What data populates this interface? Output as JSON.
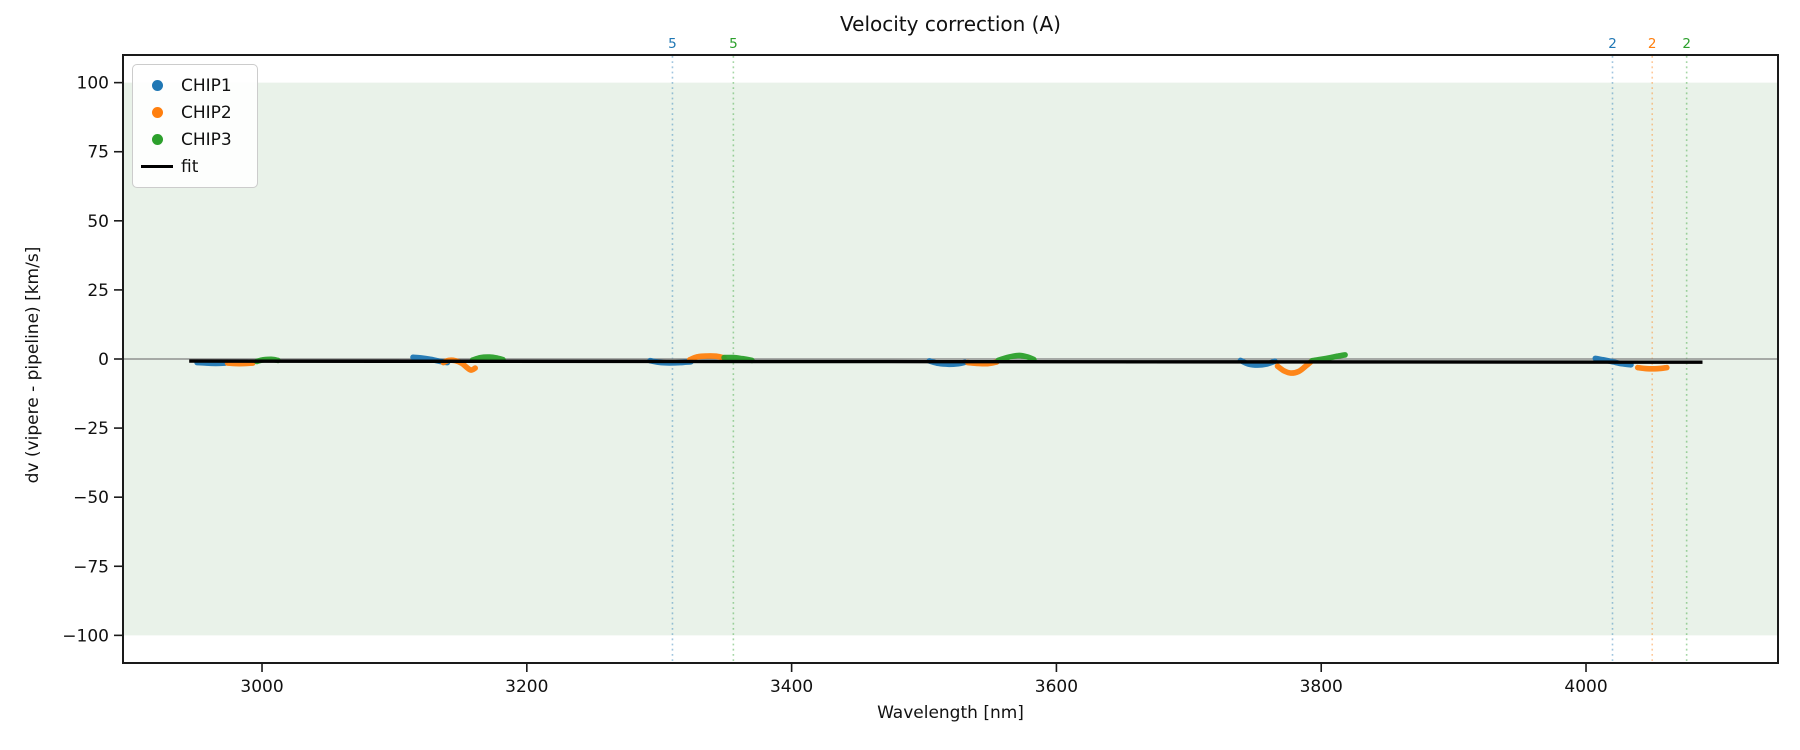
{
  "title": "Velocity correction (A)",
  "legend": {
    "entries": [
      {
        "label": "CHIP1",
        "marker": "dot",
        "color": "#1f77b4"
      },
      {
        "label": "CHIP2",
        "marker": "dot",
        "color": "#ff7f0e"
      },
      {
        "label": "CHIP3",
        "marker": "dot",
        "color": "#2ca02c"
      },
      {
        "label": "fit",
        "marker": "line",
        "color": "#000000"
      }
    ]
  },
  "chart_data": {
    "type": "scatter",
    "title": "Velocity correction (A)",
    "xlabel": "Wavelength [nm]",
    "ylabel": "dv (vipere - pipeline) [km/s]",
    "xlim": [
      2895,
      4145
    ],
    "ylim": [
      -110,
      110
    ],
    "xticks": [
      3000,
      3200,
      3400,
      3600,
      3800,
      4000
    ],
    "yticks": [
      100,
      75,
      50,
      25,
      0,
      -25,
      -50,
      -75,
      -100
    ],
    "grid": false,
    "legend_position": "upper left",
    "band": {
      "ymin": -100,
      "ymax": 100,
      "color": "#e9f2e9"
    },
    "zero_line": {
      "y": 0,
      "color": "#7f7f7f"
    },
    "fit": {
      "name": "fit",
      "color": "#000000",
      "points": [
        [
          2945,
          -0.75
        ],
        [
          4088,
          -1.15
        ]
      ]
    },
    "series": [
      {
        "name": "CHIP1",
        "color": "#1f77b4",
        "segments": [
          [
            [
              2951,
              -1.3
            ],
            [
              2958,
              -1.5
            ],
            [
              2965,
              -1.6
            ],
            [
              2972,
              -1.5
            ]
          ],
          [
            [
              3114,
              0.6
            ],
            [
              3120,
              0.4
            ],
            [
              3127,
              -0.1
            ],
            [
              3134,
              -0.8
            ],
            [
              3140,
              -1.3
            ]
          ],
          [
            [
              3293,
              -0.6
            ],
            [
              3300,
              -1.2
            ],
            [
              3308,
              -1.4
            ],
            [
              3316,
              -1.3
            ],
            [
              3324,
              -1.0
            ]
          ],
          [
            [
              3504,
              -0.7
            ],
            [
              3511,
              -1.6
            ],
            [
              3519,
              -1.9
            ],
            [
              3526,
              -1.7
            ],
            [
              3531,
              -1.2
            ]
          ],
          [
            [
              3739,
              -0.5
            ],
            [
              3745,
              -1.8
            ],
            [
              3752,
              -2.2
            ],
            [
              3759,
              -1.8
            ],
            [
              3765,
              -0.8
            ]
          ],
          [
            [
              4007,
              0.2
            ],
            [
              4013,
              -0.3
            ],
            [
              4020,
              -1.0
            ],
            [
              4027,
              -1.7
            ],
            [
              4034,
              -2.1
            ]
          ]
        ]
      },
      {
        "name": "CHIP2",
        "color": "#ff7f0e",
        "segments": [
          [
            [
              2974,
              -1.5
            ],
            [
              2983,
              -1.7
            ],
            [
              2993,
              -1.5
            ]
          ],
          [
            [
              3137,
              -1.3
            ],
            [
              3141,
              -0.5
            ],
            [
              3146,
              -0.6
            ],
            [
              3151,
              -1.6
            ],
            [
              3155,
              -3.2
            ],
            [
              3158,
              -4.0
            ],
            [
              3161,
              -3.3
            ]
          ],
          [
            [
              3323,
              -0.3
            ],
            [
              3329,
              0.8
            ],
            [
              3336,
              1.1
            ],
            [
              3343,
              1.0
            ],
            [
              3349,
              0.4
            ]
          ],
          [
            [
              3533,
              -1.3
            ],
            [
              3540,
              -1.6
            ],
            [
              3548,
              -1.7
            ],
            [
              3555,
              -1.1
            ]
          ],
          [
            [
              3767,
              -2.6
            ],
            [
              3772,
              -4.3
            ],
            [
              3777,
              -5.1
            ],
            [
              3783,
              -4.5
            ],
            [
              3788,
              -2.7
            ],
            [
              3792,
              -1.1
            ]
          ],
          [
            [
              4039,
              -3.1
            ],
            [
              4046,
              -3.5
            ],
            [
              4054,
              -3.5
            ],
            [
              4061,
              -3.1
            ]
          ]
        ]
      },
      {
        "name": "CHIP3",
        "color": "#2ca02c",
        "segments": [
          [
            [
              2996,
              -0.9
            ],
            [
              3001,
              -0.3
            ],
            [
              3007,
              -0.1
            ],
            [
              3012,
              -0.5
            ]
          ],
          [
            [
              3159,
              -0.4
            ],
            [
              3165,
              0.5
            ],
            [
              3172,
              0.7
            ],
            [
              3178,
              0.3
            ],
            [
              3182,
              -0.2
            ]
          ],
          [
            [
              3349,
              0.5
            ],
            [
              3356,
              0.5
            ],
            [
              3363,
              0.1
            ],
            [
              3370,
              -0.5
            ]
          ],
          [
            [
              3556,
              -0.5
            ],
            [
              3564,
              0.7
            ],
            [
              3572,
              1.3
            ],
            [
              3579,
              0.6
            ],
            [
              3583,
              -0.2
            ]
          ],
          [
            [
              3793,
              -0.6
            ],
            [
              3800,
              -0.1
            ],
            [
              3807,
              0.5
            ],
            [
              3813,
              1.1
            ],
            [
              3818,
              1.5
            ]
          ]
        ]
      }
    ],
    "annotations": [
      {
        "x": 3310,
        "label": "5",
        "color": "#1f77b4"
      },
      {
        "x": 3356,
        "label": "5",
        "color": "#2ca02c"
      },
      {
        "x": 4020,
        "label": "2",
        "color": "#1f77b4"
      },
      {
        "x": 4050,
        "label": "2",
        "color": "#ff7f0e"
      },
      {
        "x": 4076,
        "label": "2",
        "color": "#2ca02c"
      }
    ]
  }
}
